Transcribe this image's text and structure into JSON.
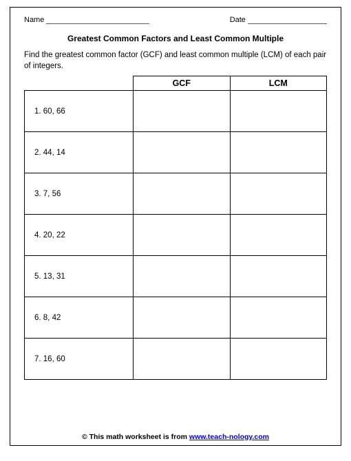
{
  "header": {
    "name_label": "Name",
    "date_label": "Date"
  },
  "title": "Greatest Common Factors and Least Common Multiple",
  "instructions": "Find the greatest common factor (GCF) and least common multiple (LCM) of each pair of integers.",
  "columns": {
    "gcf": "GCF",
    "lcm": "LCM"
  },
  "problems": [
    {
      "n": "1.",
      "pair": "60, 66"
    },
    {
      "n": "2.",
      "pair": "44, 14"
    },
    {
      "n": "3.",
      "pair": "7, 56"
    },
    {
      "n": "4.",
      "pair": "20, 22"
    },
    {
      "n": "5.",
      "pair": "13, 31"
    },
    {
      "n": "6.",
      "pair": "8, 42"
    },
    {
      "n": "7.",
      "pair": "16, 60"
    }
  ],
  "footer": {
    "prefix": "© This math worksheet is from ",
    "link_text": "www.teach-nology.com"
  }
}
